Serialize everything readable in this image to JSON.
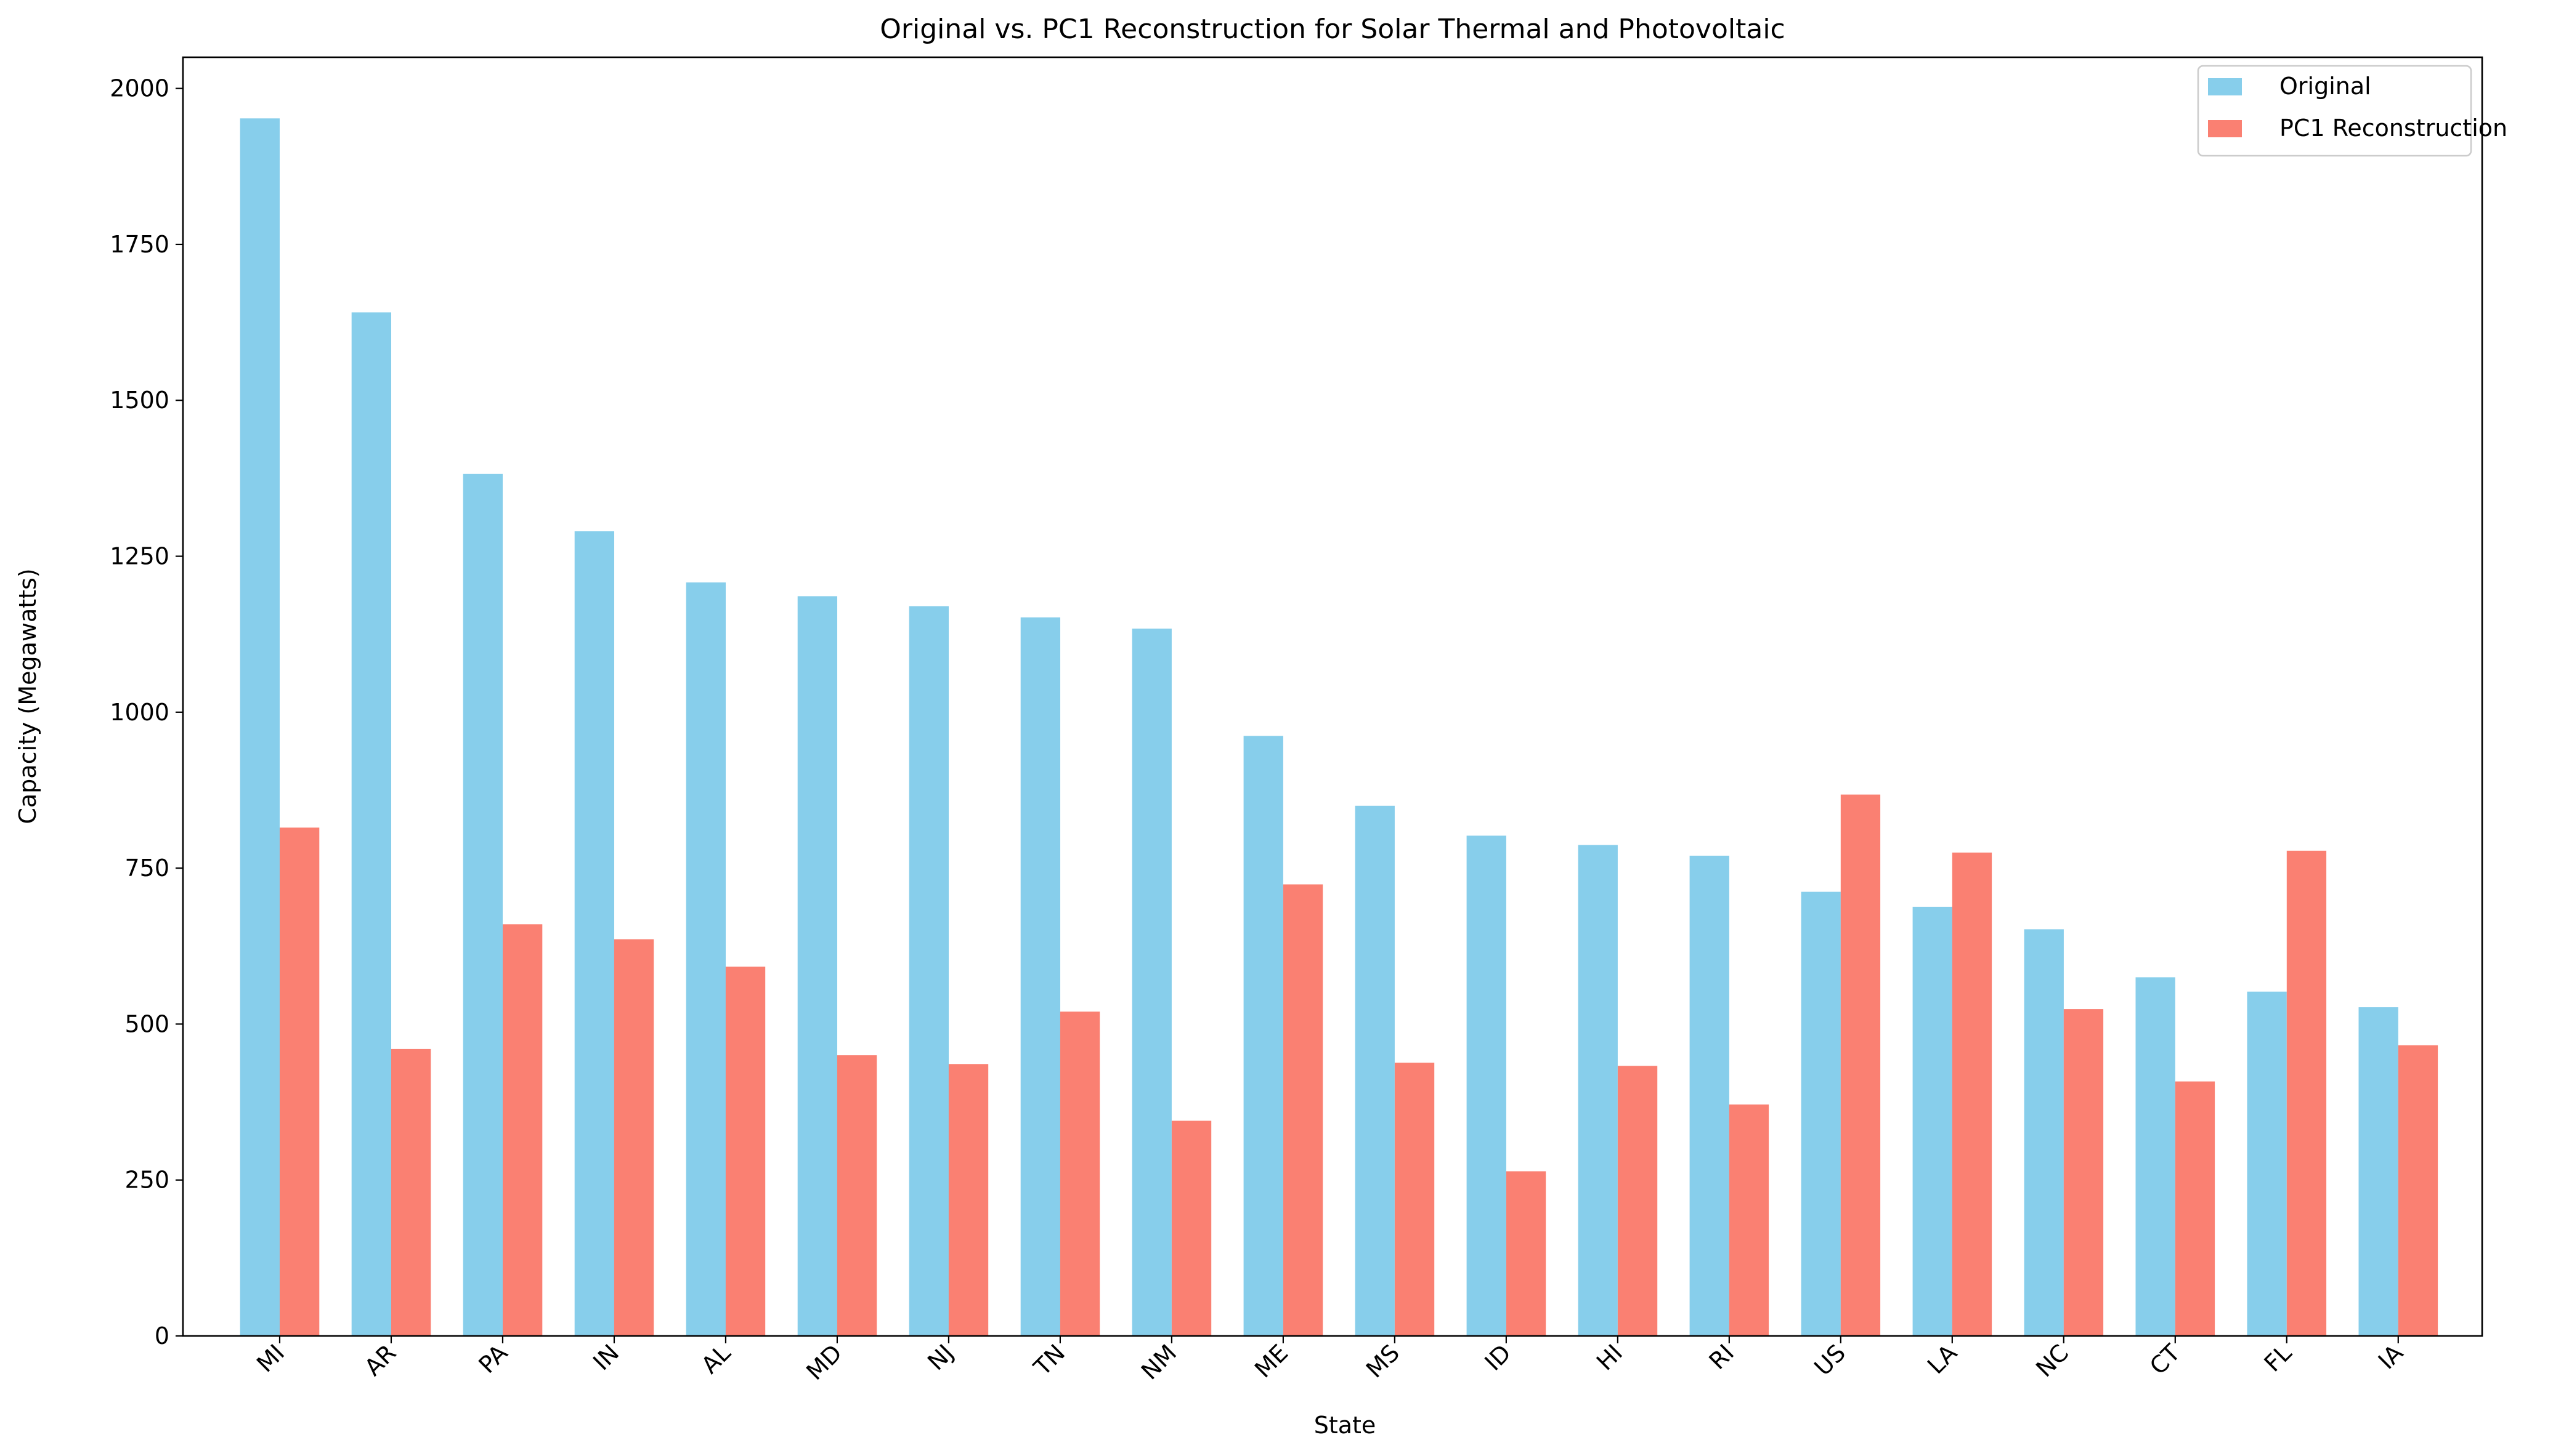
{
  "chart_data": {
    "type": "bar",
    "title": "Original vs. PC1 Reconstruction for Solar Thermal and Photovoltaic",
    "xlabel": "State",
    "ylabel": "Capacity (Megawatts)",
    "ylim": [
      0,
      2050
    ],
    "yticks": [
      0,
      250,
      500,
      750,
      1000,
      1250,
      1500,
      1750,
      2000
    ],
    "grid": false,
    "legend_position": "top-right",
    "categories": [
      "MI",
      "AR",
      "PA",
      "IN",
      "AL",
      "MD",
      "NJ",
      "TN",
      "NM",
      "ME",
      "MS",
      "ID",
      "HI",
      "RI",
      "US",
      "LA",
      "NC",
      "CT",
      "FL",
      "IA"
    ],
    "series": [
      {
        "name": "Original",
        "color": "#87CEEB",
        "values": [
          1952,
          1641,
          1382,
          1290,
          1208,
          1186,
          1170,
          1152,
          1134,
          962,
          850,
          802,
          787,
          770,
          712,
          688,
          652,
          575,
          552,
          527
        ]
      },
      {
        "name": "PC1 Reconstruction",
        "color": "#FA8072",
        "values": [
          815,
          460,
          660,
          636,
          592,
          450,
          436,
          520,
          345,
          724,
          438,
          264,
          433,
          371,
          868,
          775,
          524,
          408,
          778,
          466
        ]
      }
    ]
  }
}
